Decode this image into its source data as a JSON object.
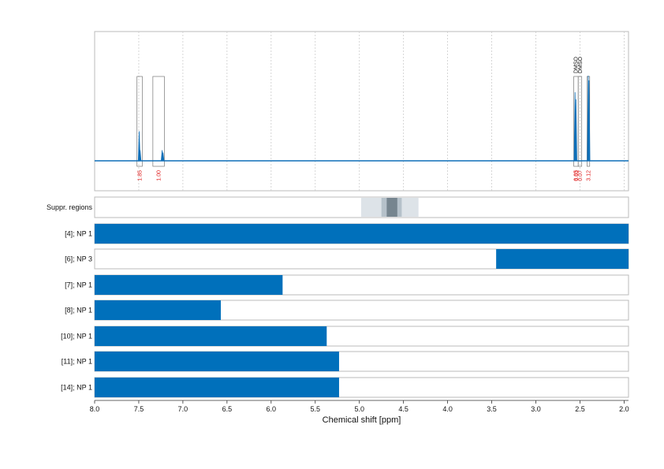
{
  "colors": {
    "spectrum": "#0F6FB8",
    "bar": "#0070BB",
    "integration": "#e02020",
    "region_box": "#777777",
    "supp_light": "#DDE3E8",
    "supp_mid": "#B5C1CA",
    "supp_dark": "#76858F",
    "frame": "#BBBBBB",
    "grid": "#CCCCCC"
  },
  "chart_data": {
    "type": "bar",
    "xlabel": "Chemical shift [ppm]",
    "xlim": [
      8.0,
      1.95
    ],
    "x_ticks": [
      "8.0",
      "7.5",
      "7.0",
      "6.5",
      "6.0",
      "5.5",
      "5.0",
      "4.5",
      "4.0",
      "3.5",
      "3.0",
      "2.5",
      "2.0"
    ],
    "spectrum": {
      "peaks": [
        {
          "ppm": 7.495,
          "height": 0.25
        },
        {
          "ppm": 7.485,
          "height": 0.09
        },
        {
          "ppm": 7.235,
          "height": 0.09
        },
        {
          "ppm": 7.225,
          "height": 0.07
        },
        {
          "ppm": 2.556,
          "height": 0.58
        },
        {
          "ppm": 2.546,
          "height": 0.52
        },
        {
          "ppm": 2.406,
          "height": 0.72
        },
        {
          "ppm": 2.398,
          "height": 0.68
        }
      ],
      "integration_regions": [
        {
          "from": 7.52,
          "to": 7.46,
          "label": "1.85"
        },
        {
          "from": 7.34,
          "to": 7.21,
          "label": "1.00"
        },
        {
          "from": 2.57,
          "to": 2.52,
          "label": "6.63"
        },
        {
          "from": 2.52,
          "to": 2.48,
          "label": "0.07",
          "peak_label": "DMSO"
        },
        {
          "from": 2.42,
          "to": 2.39,
          "label": "3.12"
        }
      ],
      "extra_peak_labels": [
        {
          "ppm": 2.548,
          "label": "DMSO"
        }
      ],
      "integration_label_overlap": {
        "ppm": 2.548,
        "label": "0.05"
      }
    },
    "suppression_regions": {
      "label": "Suppr. regions",
      "bands": [
        {
          "from": 4.98,
          "to": 4.33,
          "level": "light"
        },
        {
          "from": 4.75,
          "to": 4.52,
          "level": "mid"
        },
        {
          "from": 4.69,
          "to": 4.57,
          "level": "dark"
        }
      ]
    },
    "series": [
      {
        "name": "[4]; NP 1",
        "from": 8.0,
        "to": 1.95
      },
      {
        "name": "[6]; NP 3",
        "from": 3.45,
        "to": 1.95
      },
      {
        "name": "[7]; NP 1",
        "from": 8.0,
        "to": 5.87
      },
      {
        "name": "[8]; NP 1",
        "from": 8.0,
        "to": 6.57
      },
      {
        "name": "[10]; NP 1",
        "from": 8.0,
        "to": 5.37
      },
      {
        "name": "[11]; NP 1",
        "from": 8.0,
        "to": 5.23
      },
      {
        "name": "[14]; NP 1",
        "from": 8.0,
        "to": 5.23
      }
    ],
    "grid": true
  }
}
